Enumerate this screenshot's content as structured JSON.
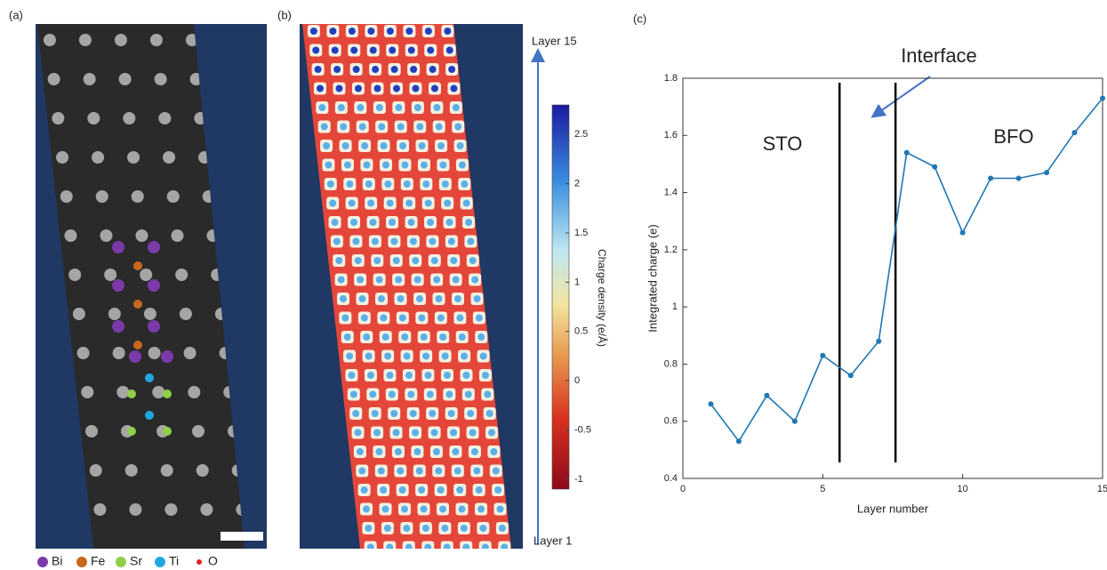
{
  "panel_labels": [
    "(a)",
    "(b)",
    "(c)"
  ],
  "legend": [
    {
      "name": "Bi",
      "color": "#7a3aa8"
    },
    {
      "name": "Fe",
      "color": "#c8671e"
    },
    {
      "name": "Sr",
      "color": "#8fcf4a"
    },
    {
      "name": "Ti",
      "color": "#1fa8e0"
    },
    {
      "name": "O",
      "color": "#e02020"
    }
  ],
  "layer_top": "Layer 15",
  "layer_bottom": "Layer 1",
  "colorbar": {
    "label": "Charge density (e/Å)",
    "clim": [
      -1.1,
      2.8
    ],
    "ticks": [
      2.5,
      2,
      1.5,
      1,
      0.5,
      0,
      -0.5,
      -1
    ]
  },
  "chart_data": {
    "type": "line",
    "xlabel": "Layer number",
    "ylabel": "Integrated charge (e)",
    "x": [
      1,
      2,
      3,
      4,
      5,
      6,
      7,
      8,
      9,
      10,
      11,
      12,
      13,
      14,
      15
    ],
    "series": [
      {
        "color": "#1f77b4",
        "values": [
          0.66,
          0.53,
          0.69,
          0.6,
          0.83,
          0.76,
          0.88,
          1.54,
          1.49,
          1.26,
          1.45,
          1.45,
          1.47,
          1.61,
          1.73
        ]
      }
    ],
    "xlim": [
      0,
      15
    ],
    "xticks": [
      0,
      5,
      10,
      15
    ],
    "ylim": [
      0.4,
      1.8
    ],
    "yticks": [
      0.4,
      0.6,
      0.8,
      1,
      1.2,
      1.4,
      1.6,
      1.8
    ],
    "vlines": [
      5.6,
      7.6
    ],
    "annotations": [
      "STO",
      "BFO",
      "Interface"
    ]
  }
}
